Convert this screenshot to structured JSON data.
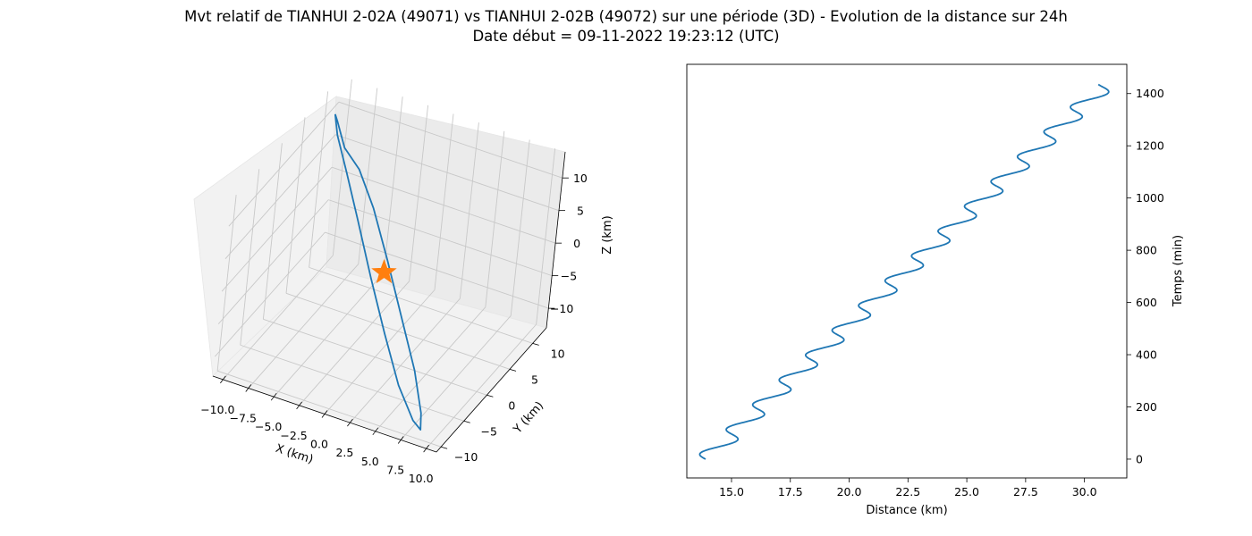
{
  "title": {
    "line1": "Mvt relatif de TIANHUI 2-02A (49071) vs TIANHUI 2-02B (49072) sur une période (3D) - Evolution de la distance sur 24h",
    "line2": "Date début = 09-11-2022 19:23:12 (UTC)"
  },
  "chart_data": [
    {
      "type": "line3d",
      "xlabel": "X (km)",
      "ylabel": "Y (km)",
      "zlabel": "Z (km)",
      "xlim": [
        -11,
        11
      ],
      "ylim": [
        -11,
        13
      ],
      "zlim": [
        -13,
        14
      ],
      "x_ticks": [
        "−10.0",
        "−7.5",
        "−5.0",
        "−2.5",
        "0.0",
        "2.5",
        "5.0",
        "7.5",
        "10.0"
      ],
      "y_ticks": [
        "−10",
        "−5",
        "0",
        "5",
        "10"
      ],
      "z_ticks": [
        "−10",
        "−5",
        "0",
        "5",
        "10"
      ],
      "grid": true,
      "series": [
        {
          "color": "#1f77b4",
          "points": [
            [
              -9.5,
              8.5,
              12.5
            ],
            [
              -8.5,
              7.0,
              11.0
            ],
            [
              -6.5,
              5.0,
              8.0
            ],
            [
              -4.0,
              2.5,
              4.0
            ],
            [
              -1.0,
              -0.5,
              -1.0
            ],
            [
              2.0,
              -3.5,
              -5.5
            ],
            [
              5.0,
              -6.5,
              -9.5
            ],
            [
              7.5,
              -8.5,
              -12.0
            ],
            [
              8.5,
              -9.0,
              -12.5
            ],
            [
              8.0,
              -8.0,
              -11.0
            ],
            [
              6.0,
              -5.5,
              -7.5
            ],
            [
              3.0,
              -2.5,
              -3.0
            ],
            [
              0.0,
              0.5,
              1.5
            ],
            [
              -3.0,
              3.5,
              5.5
            ],
            [
              -5.5,
              5.5,
              8.5
            ],
            [
              -7.5,
              6.5,
              10.0
            ],
            [
              -9.0,
              8.0,
              12.0
            ],
            [
              -9.5,
              8.5,
              12.5
            ]
          ]
        }
      ],
      "marker": {
        "symbol": "star",
        "color": "#ff7f0e",
        "x": 0,
        "y": 0,
        "z": 0
      }
    },
    {
      "type": "line",
      "xlabel": "Distance (km)",
      "ylabel": "Temps (min)",
      "xlim": [
        13.1,
        31.8
      ],
      "ylim": [
        -72,
        1512
      ],
      "x_ticks": [
        15.0,
        17.5,
        20.0,
        22.5,
        25.0,
        27.5,
        30.0
      ],
      "x_tick_labels": [
        "15.0",
        "17.5",
        "20.0",
        "22.5",
        "25.0",
        "27.5",
        "30.0"
      ],
      "y_ticks": [
        0,
        200,
        400,
        600,
        800,
        1000,
        1200,
        1400
      ],
      "y_tick_labels": [
        "0",
        "200",
        "400",
        "600",
        "800",
        "1000",
        "1200",
        "1400"
      ],
      "y_axis_side": "right",
      "series": [
        {
          "color": "#1f77b4",
          "x_start": 13.9,
          "x_end": 30.9,
          "t_start": 0,
          "t_end": 1435,
          "oscillation_period_min": 95,
          "oscillation_amplitude_km": 0.5
        }
      ]
    }
  ]
}
